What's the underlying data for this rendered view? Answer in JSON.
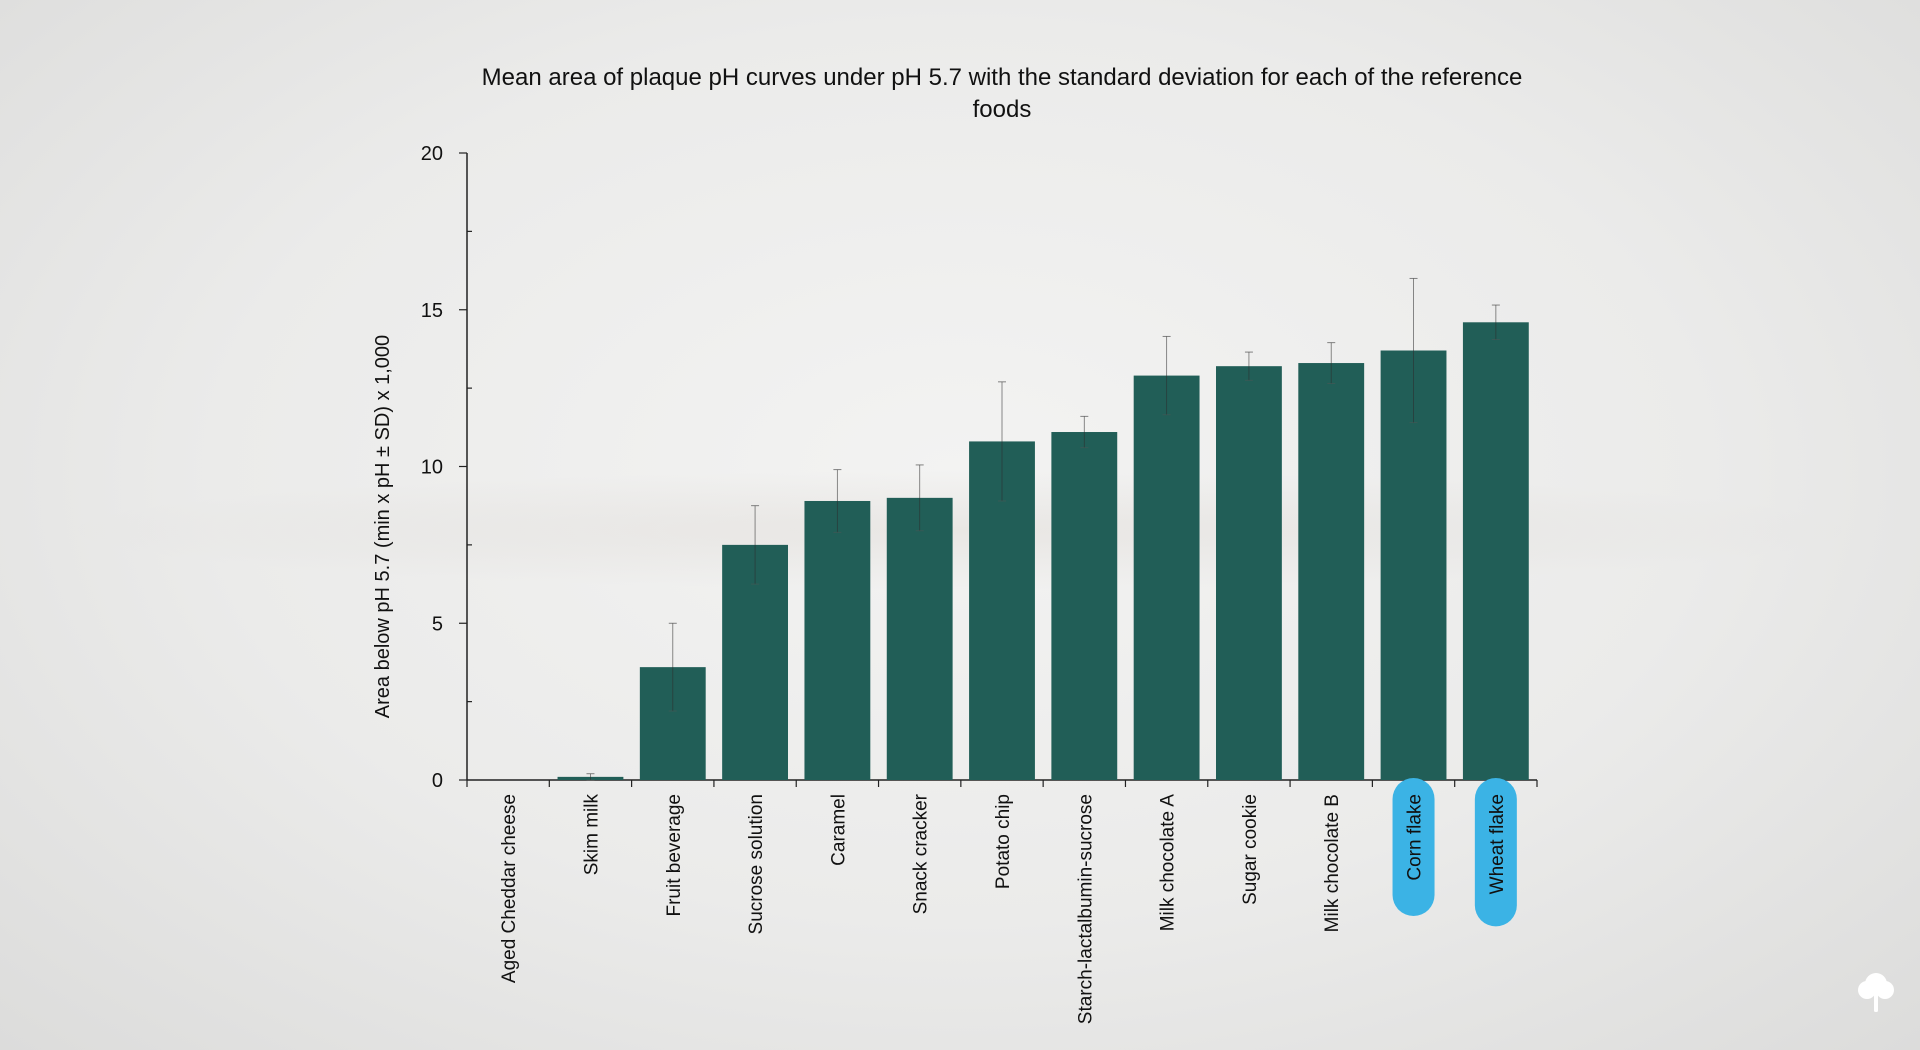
{
  "chart_data": {
    "type": "bar",
    "title": "Mean area of plaque pH curves under pH 5.7 with the standard deviation for each of the reference foods",
    "ylabel": "Area below pH 5.7 (min x pH ± SD) x 1,000",
    "xlabel": "",
    "ylim": [
      0,
      20
    ],
    "yticks": [
      0,
      5,
      10,
      15,
      20
    ],
    "grid": false,
    "categories": [
      "Aged Cheddar cheese",
      "Skim milk",
      "Fruit beverage",
      "Sucrose solution",
      "Caramel",
      "Snack cracker",
      "Potato chip",
      "Starch-lactalbumin-sucrose",
      "Milk chocolate A",
      "Sugar cookie",
      "Milk chocolate B",
      "Corn flake",
      "Wheat flake"
    ],
    "values": [
      0,
      0.1,
      3.6,
      7.5,
      8.9,
      9.0,
      10.8,
      11.1,
      12.9,
      13.2,
      13.3,
      13.7,
      14.6
    ],
    "errors": [
      0,
      0.1,
      1.4,
      1.25,
      1.0,
      1.05,
      1.9,
      0.5,
      1.25,
      0.45,
      0.65,
      2.3,
      0.55
    ],
    "highlighted": [
      "Corn flake",
      "Wheat flake"
    ],
    "colors": {
      "bar": "#215e57",
      "highlight": "#3bb3e5",
      "axis": "#222222"
    }
  }
}
